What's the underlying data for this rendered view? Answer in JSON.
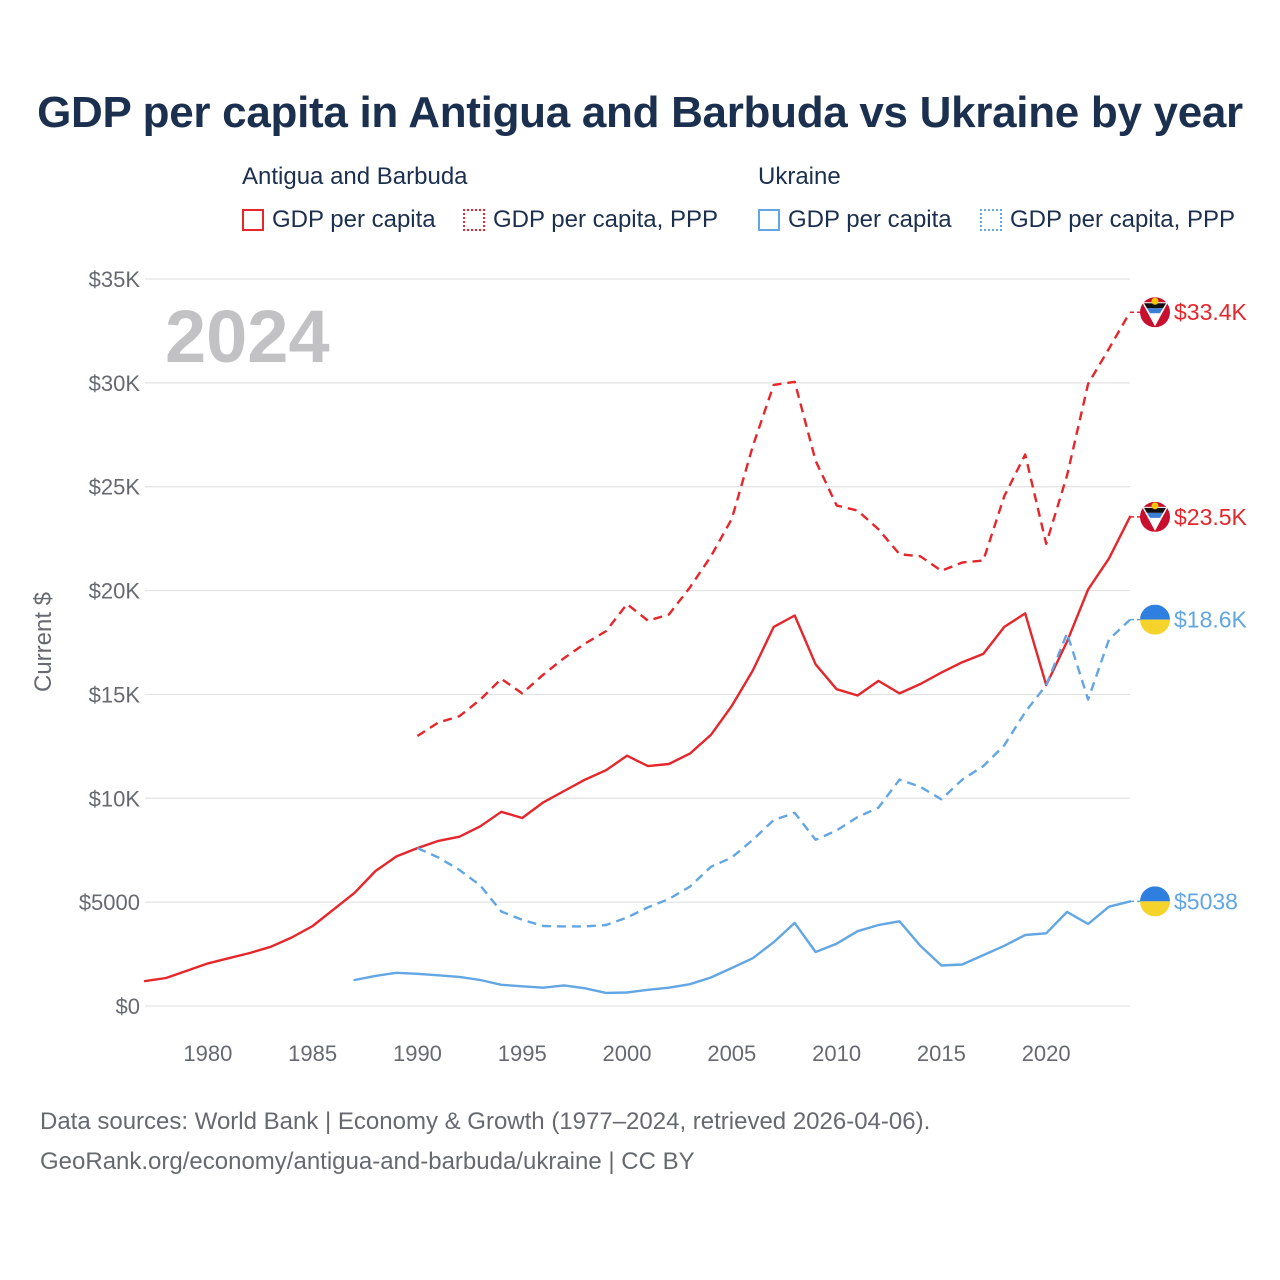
{
  "chart_data": {
    "type": "line",
    "title": "GDP per capita in Antigua and Barbuda vs Ukraine by year",
    "year_label": "2024",
    "ylabel": "Current $",
    "xlabel": "",
    "xlim": [
      1977,
      2024
    ],
    "ylim": [
      0,
      35000
    ],
    "x_ticks": [
      1980,
      1985,
      1990,
      1995,
      2000,
      2005,
      2010,
      2015,
      2020
    ],
    "x_tick_labels": [
      "1980",
      "1985",
      "1990",
      "1995",
      "2000",
      "2005",
      "2010",
      "2015",
      "2020"
    ],
    "y_ticks": [
      0,
      5000,
      10000,
      15000,
      20000,
      25000,
      30000,
      35000
    ],
    "y_tick_labels": [
      "$0",
      "$5000",
      "$10K",
      "$15K",
      "$20K",
      "$25K",
      "$30K",
      "$35K"
    ],
    "legend": {
      "groups": [
        {
          "name": "Antigua and Barbuda",
          "items": [
            "GDP per capita",
            "GDP per capita, PPP"
          ]
        },
        {
          "name": "Ukraine",
          "items": [
            "GDP per capita",
            "GDP per capita, PPP"
          ]
        }
      ]
    },
    "series": [
      {
        "name": "Antigua and Barbuda GDP per capita",
        "country": "Antigua and Barbuda",
        "color": "#e5262b",
        "dash": "solid",
        "end_label": "$23.5K",
        "x": [
          1977,
          1978,
          1979,
          1980,
          1981,
          1982,
          1983,
          1984,
          1985,
          1986,
          1987,
          1988,
          1989,
          1990,
          1991,
          1992,
          1993,
          1994,
          1995,
          1996,
          1997,
          1998,
          1999,
          2000,
          2001,
          2002,
          2003,
          2004,
          2005,
          2006,
          2007,
          2008,
          2009,
          2010,
          2011,
          2012,
          2013,
          2014,
          2015,
          2016,
          2017,
          2018,
          2019,
          2020,
          2021,
          2022,
          2023,
          2024
        ],
        "values": [
          1200,
          1350,
          1700,
          2050,
          2300,
          2550,
          2850,
          3300,
          3850,
          4650,
          5450,
          6500,
          7200,
          7600,
          7950,
          8150,
          8650,
          9350,
          9050,
          9800,
          10350,
          10900,
          11350,
          12050,
          11550,
          11650,
          12150,
          13050,
          14450,
          16150,
          18250,
          18800,
          16450,
          15250,
          14950,
          15650,
          15050,
          15500,
          16050,
          16550,
          16950,
          18250,
          18900,
          15450,
          17550,
          20050,
          21550,
          23550
        ]
      },
      {
        "name": "Antigua and Barbuda GDP per capita, PPP",
        "country": "Antigua and Barbuda",
        "color": "#e5262b",
        "dash": "dashed",
        "end_label": "$33.4K",
        "x": [
          1990,
          1991,
          1992,
          1993,
          1994,
          1995,
          1996,
          1997,
          1998,
          1999,
          2000,
          2001,
          2002,
          2003,
          2004,
          2005,
          2006,
          2007,
          2008,
          2009,
          2010,
          2011,
          2012,
          2013,
          2014,
          2015,
          2016,
          2017,
          2018,
          2019,
          2020,
          2021,
          2022,
          2023,
          2024
        ],
        "values": [
          13000,
          13650,
          13950,
          14750,
          15750,
          15050,
          15950,
          16750,
          17450,
          18050,
          19350,
          18550,
          18850,
          20150,
          21650,
          23450,
          26950,
          29900,
          30050,
          26250,
          24100,
          23850,
          22950,
          21750,
          21650,
          20950,
          21350,
          21450,
          24550,
          26550,
          22250,
          25550,
          29950,
          31650,
          33400
        ]
      },
      {
        "name": "Ukraine GDP per capita",
        "country": "Ukraine",
        "color": "#62a6e3",
        "dash": "solid",
        "end_label": "$5038",
        "x": [
          1987,
          1988,
          1989,
          1990,
          1991,
          1992,
          1993,
          1994,
          1995,
          1996,
          1997,
          1998,
          1999,
          2000,
          2001,
          2002,
          2003,
          2004,
          2005,
          2006,
          2007,
          2008,
          2009,
          2010,
          2011,
          2012,
          2013,
          2014,
          2015,
          2016,
          2017,
          2018,
          2019,
          2020,
          2021,
          2022,
          2023,
          2024
        ],
        "values": [
          1250,
          1450,
          1600,
          1550,
          1480,
          1400,
          1250,
          1020,
          950,
          880,
          990,
          850,
          630,
          650,
          780,
          880,
          1050,
          1370,
          1830,
          2300,
          3070,
          4000,
          2600,
          3000,
          3600,
          3900,
          4080,
          2900,
          1950,
          2000,
          2450,
          2900,
          3420,
          3500,
          4530,
          3950,
          4780,
          5038
        ]
      },
      {
        "name": "Ukraine GDP per capita, PPP",
        "country": "Ukraine",
        "color": "#62a6e3",
        "dash": "dashed",
        "end_label": "$18.6K",
        "x": [
          1990,
          1991,
          1992,
          1993,
          1994,
          1995,
          1996,
          1997,
          1998,
          1999,
          2000,
          2001,
          2002,
          2003,
          2004,
          2005,
          2006,
          2007,
          2008,
          2009,
          2010,
          2011,
          2012,
          2013,
          2014,
          2015,
          2016,
          2017,
          2018,
          2019,
          2020,
          2021,
          2022,
          2023,
          2024
        ],
        "values": [
          7600,
          7150,
          6550,
          5800,
          4550,
          4150,
          3850,
          3830,
          3830,
          3900,
          4260,
          4750,
          5150,
          5750,
          6700,
          7150,
          8000,
          8950,
          9300,
          8000,
          8450,
          9100,
          9550,
          10900,
          10550,
          9950,
          10900,
          11550,
          12550,
          14150,
          15450,
          17950,
          14750,
          17650,
          18600
        ]
      }
    ]
  },
  "legend_labels": {
    "group_a": "Antigua and Barbuda",
    "group_b": "Ukraine",
    "a_gdp": "GDP per capita",
    "a_ppp": "GDP per capita, PPP",
    "b_gdp": "GDP per capita",
    "b_ppp": "GDP per capita, PPP"
  },
  "colors": {
    "antigua": "#e5262b",
    "ukraine": "#62a6e3",
    "title": "#1b2f4f",
    "axis_text": "#666a70",
    "grid": "#e3e3e3",
    "year_watermark": "#c2c2c4"
  },
  "footer": {
    "line1": "Data sources: World Bank | Economy & Growth (1977–2024, retrieved 2026-04-06).",
    "line2": "GeoRank.org/economy/antigua-and-barbuda/ukraine | CC BY"
  },
  "icons": {
    "antigua": "antigua-flag-icon",
    "ukraine": "ukraine-flag-icon"
  }
}
